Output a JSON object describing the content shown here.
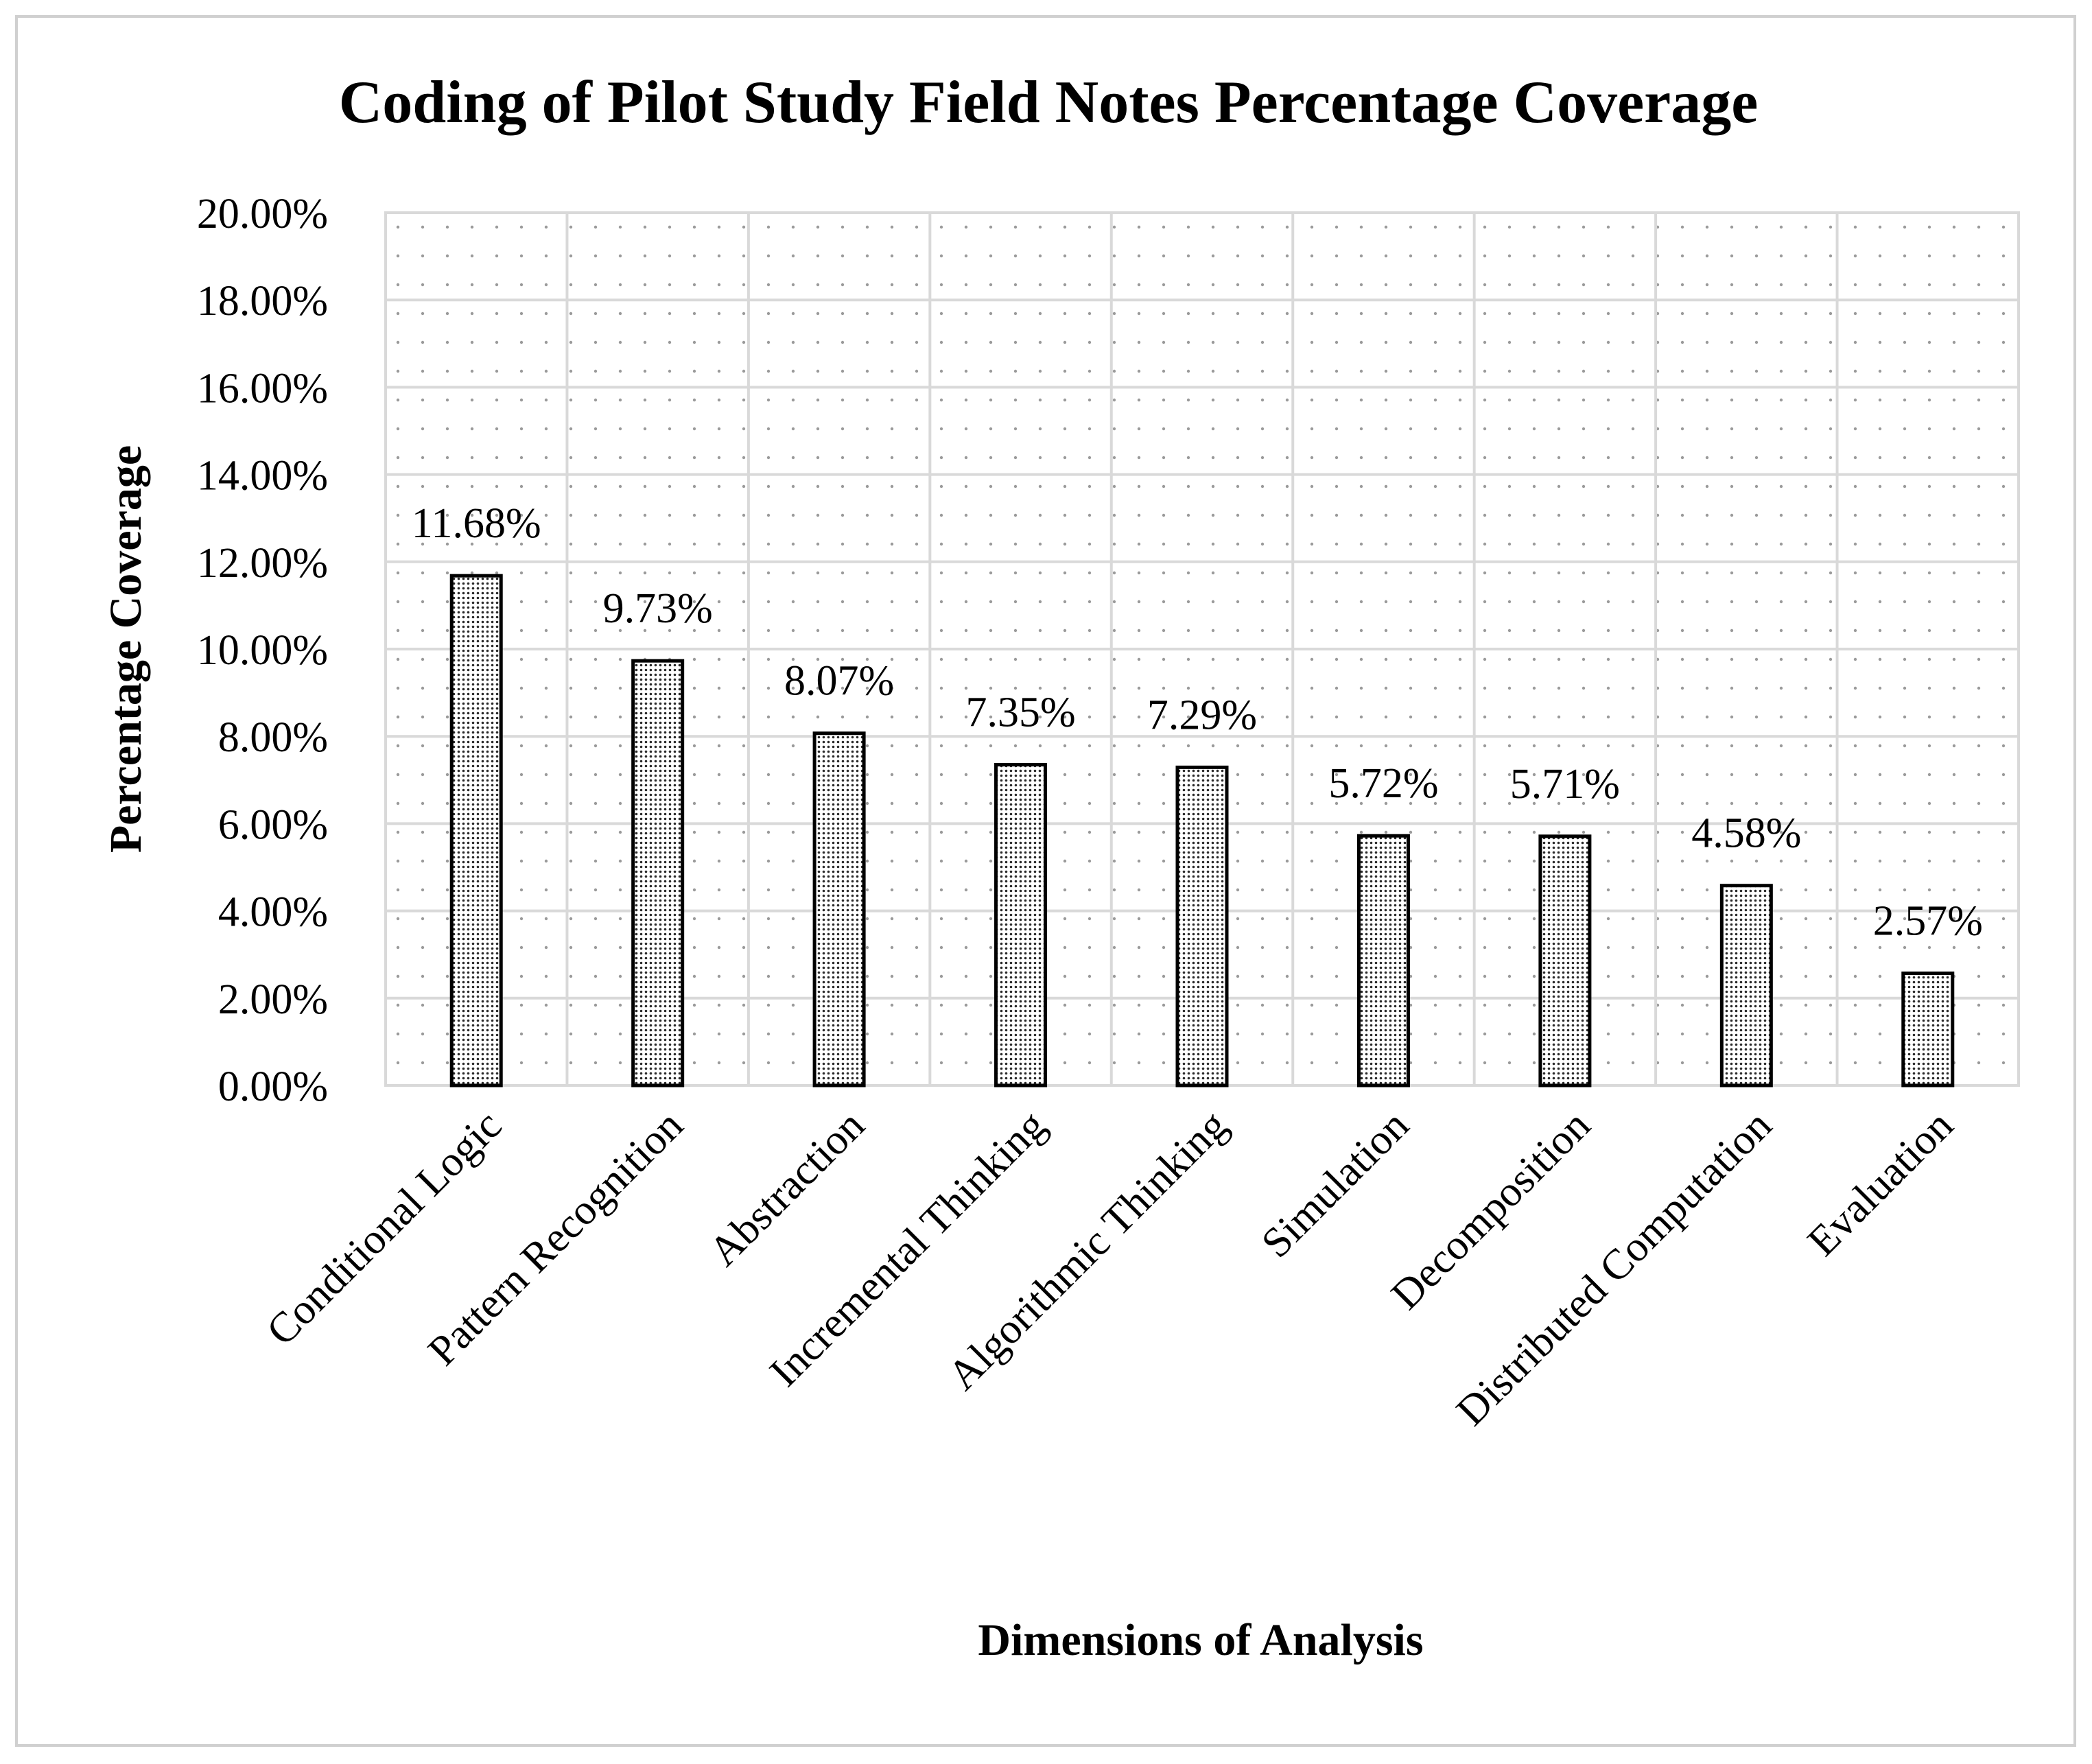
{
  "chart_data": {
    "type": "bar",
    "title": "Coding of Pilot Study Field Notes Percentage Coverage",
    "xlabel": "Dimensions of Analysis",
    "ylabel": "Percentage Coverage",
    "ylim": [
      0,
      20
    ],
    "ytick_step": 2,
    "yticks": [
      "0.00%",
      "2.00%",
      "4.00%",
      "6.00%",
      "8.00%",
      "10.00%",
      "12.00%",
      "14.00%",
      "16.00%",
      "18.00%",
      "20.00%"
    ],
    "categories": [
      "Conditional Logic",
      "Pattern Recognition",
      "Abstraction",
      "Incremental Thinking",
      "Algorithmic Thinking",
      "Simulation",
      "Decomposition",
      "Distributed Computation",
      "Evaluation"
    ],
    "values": [
      11.68,
      9.73,
      8.07,
      7.35,
      7.29,
      5.72,
      5.71,
      4.58,
      2.57
    ],
    "data_labels": [
      "11.68%",
      "9.73%",
      "8.07%",
      "7.35%",
      "7.29%",
      "5.72%",
      "5.71%",
      "4.58%",
      "2.57%"
    ],
    "grid": true,
    "legend": "none",
    "colors": {
      "bar_fill": "#d9d9d9",
      "bar_edge": "#000000",
      "grid": "#d9d9d9",
      "text": "#000000"
    }
  }
}
